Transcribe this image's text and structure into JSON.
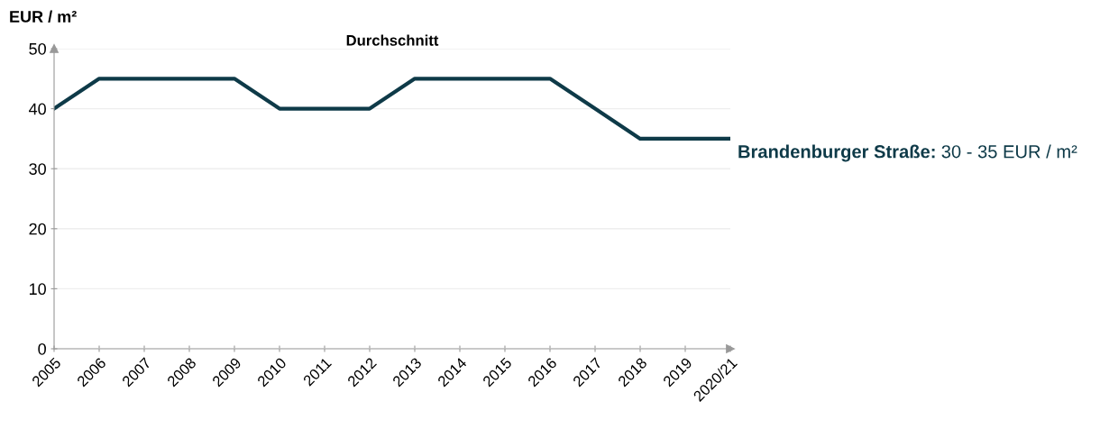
{
  "chart_data": {
    "type": "line",
    "title": "Durchschnitt",
    "ylabel": "EUR / m²",
    "categories": [
      "2005",
      "2006",
      "2007",
      "2008",
      "2009",
      "2010",
      "2011",
      "2012",
      "2013",
      "2014",
      "2015",
      "2016",
      "2017",
      "2018",
      "2019",
      "2020/21"
    ],
    "series": [
      {
        "color": "#0e3a48",
        "values": [
          40,
          45,
          45,
          45,
          45,
          40,
          40,
          40,
          45,
          45,
          45,
          45,
          40,
          35,
          35,
          35
        ]
      }
    ],
    "ylim": [
      0,
      50
    ],
    "yticks": [
      0,
      10,
      20,
      30,
      40,
      50
    ],
    "grid": "y",
    "legend": false,
    "marker": "none",
    "line_style": "solid",
    "annotations": [
      "Brandenburger Straße:",
      "30 - 35 EUR / m²"
    ]
  }
}
